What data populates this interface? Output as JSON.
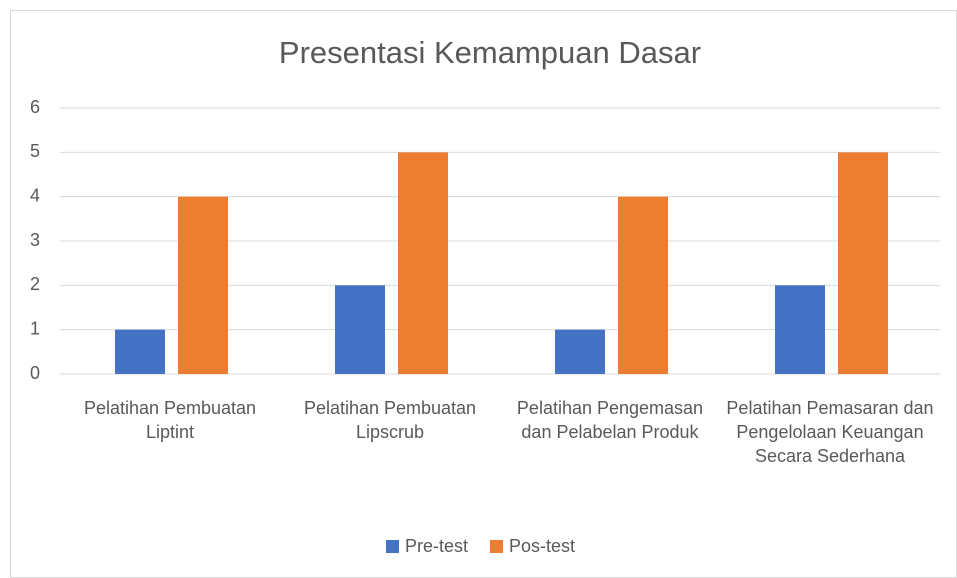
{
  "chart_data": {
    "type": "bar",
    "title": "Presentasi Kemampuan Dasar",
    "categories": [
      "Pelatihan Pembuatan Liptint",
      "Pelatihan Pembuatan Lipscrub",
      "Pelatihan Pengemasan dan Pelabelan Produk",
      "Pelatihan Pemasaran dan Pengelolaan Keuangan Secara Sederhana"
    ],
    "series": [
      {
        "name": "Pre-test",
        "color": "#4472c4",
        "values": [
          1,
          2,
          1,
          2
        ]
      },
      {
        "name": "Pos-test",
        "color": "#ed7d31",
        "values": [
          4,
          5,
          4,
          5
        ]
      }
    ],
    "ylim": [
      0,
      6
    ],
    "yticks": [
      0,
      1,
      2,
      3,
      4,
      5,
      6
    ],
    "grid": true,
    "legend": "bottom"
  }
}
